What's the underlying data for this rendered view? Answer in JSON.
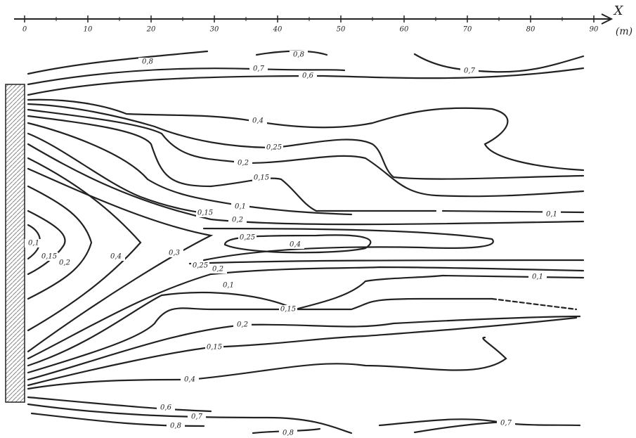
{
  "axis": {
    "label": "X",
    "unit": "(m)",
    "ticks": [
      "0",
      "10",
      "20",
      "30",
      "40",
      "50",
      "60",
      "70",
      "80",
      "90"
    ]
  },
  "contour_labels": [
    "0,8",
    "0,8",
    "0,7",
    "0,6",
    "0,7",
    "0,4",
    "0,25",
    "0,2",
    "0,15",
    "0,1",
    "0,15",
    "0,2",
    "0,25",
    "0,4",
    "0,1",
    "0,15",
    "0,2",
    "0,4",
    "0,3",
    "0,25",
    "0,2",
    "0,1",
    "0,15",
    "0,2",
    "0,15",
    "0,4",
    "0,6",
    "0,7",
    "0,8",
    "0,8",
    "0,1",
    "0,1",
    "0,7"
  ]
}
